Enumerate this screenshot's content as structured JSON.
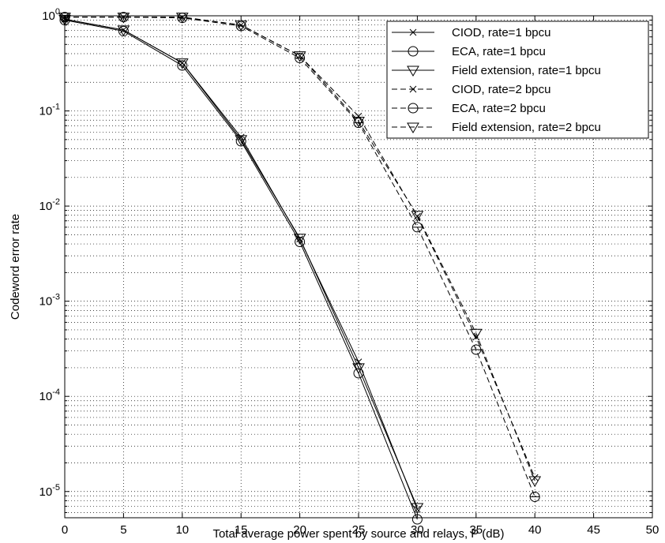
{
  "chart_data": {
    "type": "line",
    "title": "",
    "xlabel": "Total average power spent by source and relays, P (dB)",
    "ylabel": "Codeword error rate",
    "xlim": [
      0,
      50
    ],
    "ylim": [
      5.3e-06,
      1
    ],
    "yscale": "log",
    "grid": true,
    "legend_position": "top-right",
    "x_ticks": [
      "0",
      "5",
      "10",
      "15",
      "20",
      "25",
      "30",
      "35",
      "40",
      "45",
      "50"
    ],
    "y_ticks": [
      {
        "base": "10",
        "exp": "0"
      },
      {
        "base": "10",
        "exp": "-1"
      },
      {
        "base": "10",
        "exp": "-2"
      },
      {
        "base": "10",
        "exp": "-3"
      },
      {
        "base": "10",
        "exp": "-4"
      },
      {
        "base": "10",
        "exp": "-5"
      }
    ],
    "series": [
      {
        "name": "CIOD, rate=1 bpcu",
        "marker": "x",
        "style": "solid",
        "x": [
          0,
          5,
          10,
          15,
          20,
          25,
          30
        ],
        "y": [
          0.92,
          0.71,
          0.32,
          0.053,
          0.0045,
          0.00023,
          6.5e-06
        ]
      },
      {
        "name": "ECA, rate=1 bpcu",
        "marker": "circle",
        "style": "solid",
        "x": [
          0,
          5,
          10,
          15,
          20,
          25,
          30
        ],
        "y": [
          0.9,
          0.69,
          0.3,
          0.048,
          0.0042,
          0.000175,
          5.1e-06
        ]
      },
      {
        "name": "Field extension, rate=1 bpcu",
        "marker": "triangle-down",
        "style": "solid",
        "x": [
          0,
          5,
          10,
          15,
          20,
          25,
          30
        ],
        "y": [
          0.92,
          0.71,
          0.32,
          0.05,
          0.0046,
          0.0002,
          6.8e-06
        ]
      },
      {
        "name": "CIOD, rate=2 bpcu",
        "marker": "x",
        "style": "dashed",
        "x": [
          0,
          5,
          10,
          15,
          20,
          25,
          30,
          35,
          40
        ],
        "y": [
          0.97,
          0.97,
          0.96,
          0.8,
          0.38,
          0.088,
          0.0078,
          0.00042,
          1.4e-05
        ]
      },
      {
        "name": "ECA, rate=2 bpcu",
        "marker": "circle-line",
        "style": "dashed",
        "x": [
          0,
          5,
          10,
          15,
          20,
          25,
          30,
          35,
          40
        ],
        "y": [
          0.97,
          0.97,
          0.95,
          0.78,
          0.36,
          0.075,
          0.006,
          0.00031,
          8.8e-06
        ]
      },
      {
        "name": "Field extension, rate=2 bpcu",
        "marker": "triangle-down",
        "style": "dashed",
        "x": [
          0,
          5,
          10,
          15,
          20,
          25,
          30,
          35,
          40
        ],
        "y": [
          0.97,
          0.97,
          0.97,
          0.8,
          0.38,
          0.078,
          0.008,
          0.00046,
          1.3e-05
        ]
      }
    ]
  }
}
